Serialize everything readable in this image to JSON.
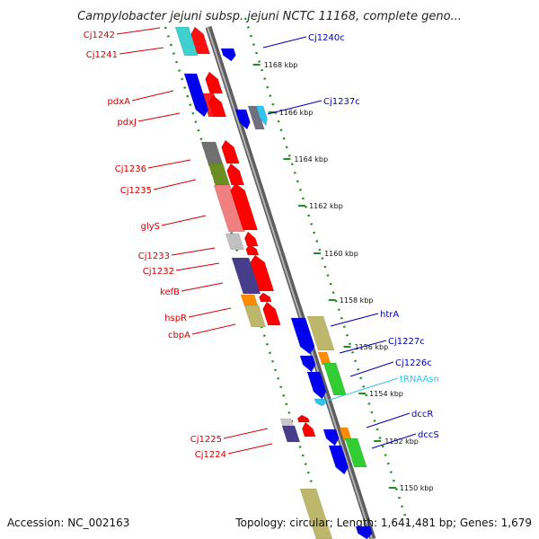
{
  "title": "Campylobacter jejuni subsp. jejuni NCTC 11168, complete geno...",
  "footer": {
    "accession": "Accession: NC_002163",
    "summary": "Topology: circular; Length: 1,641,481 bp; Genes: 1,679"
  },
  "scale": {
    "ticks": [
      "1168 kbp",
      "1166 kbp",
      "1164 kbp",
      "1162 kbp",
      "1160 kbp",
      "1158 kbp",
      "1156 kbp",
      "1154 kbp",
      "1152 kbp",
      "1150 kbp"
    ]
  },
  "colors": {
    "forward_label": "#d40000",
    "reverse_label": "#0000aa",
    "rna_label": "#33c3dd",
    "forward_arrow": "#ff0000",
    "reverse_arrow": "#0000ee",
    "backbone": "#888888",
    "ruler": "#228b22"
  },
  "forward_genes": [
    {
      "label": "Cj1242"
    },
    {
      "label": "Cj1241"
    },
    {
      "label": "pdxA"
    },
    {
      "label": "pdxJ"
    },
    {
      "label": "Cj1236"
    },
    {
      "label": "Cj1235"
    },
    {
      "label": "glyS"
    },
    {
      "label": "Cj1233"
    },
    {
      "label": "Cj1232"
    },
    {
      "label": "kefB"
    },
    {
      "label": "hspR"
    },
    {
      "label": "cbpA"
    },
    {
      "label": "Cj1225"
    },
    {
      "label": "Cj1224"
    }
  ],
  "reverse_genes": [
    {
      "label": "Cj1240c"
    },
    {
      "label": "Cj1237c"
    },
    {
      "label": "htrA"
    },
    {
      "label": "Cj1227c"
    },
    {
      "label": "Cj1226c"
    },
    {
      "label": "tRNAAsn"
    },
    {
      "label": "dccR"
    },
    {
      "label": "dccS"
    }
  ]
}
